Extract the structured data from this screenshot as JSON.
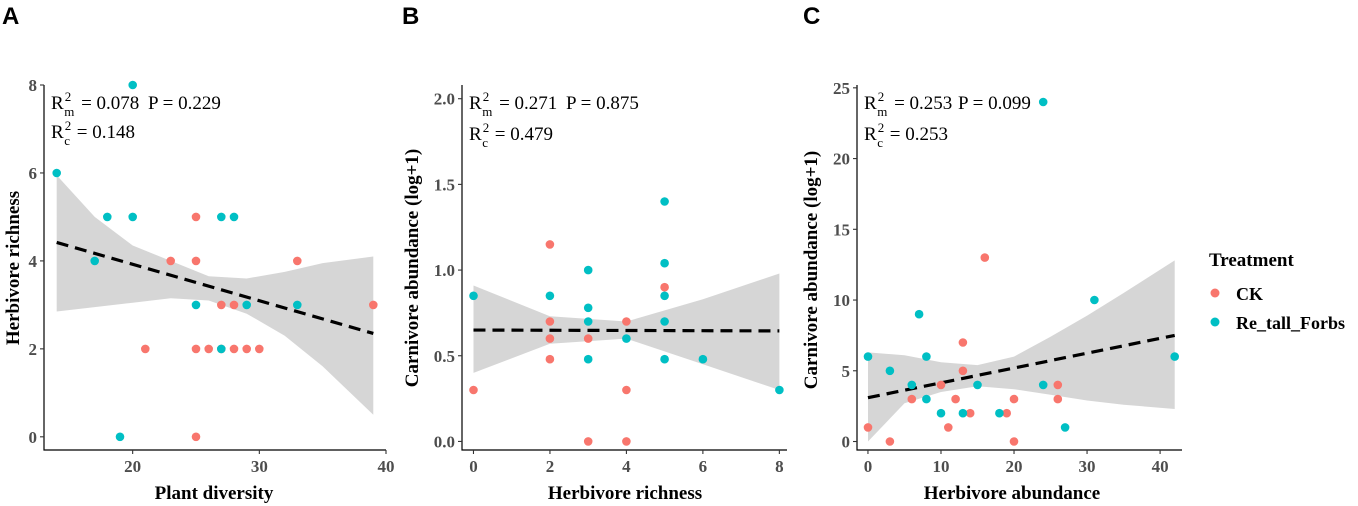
{
  "colors": {
    "CK": "#F8766D",
    "Re_tall_Forbs": "#00BFC4"
  },
  "legend": {
    "title": "Treatment",
    "items": [
      {
        "label": "CK",
        "color": "#F8766D"
      },
      {
        "label": "Re_tall_Forbs",
        "color": "#00BFC4"
      }
    ]
  },
  "chart_data": [
    {
      "type": "scatter",
      "panel": "A",
      "xlabel": "Plant diversity",
      "ylabel": "Herbivore richness",
      "xlim": [
        13,
        40
      ],
      "ylim": [
        -0.3,
        8
      ],
      "xticks": [
        20,
        30,
        40
      ],
      "yticks": [
        0,
        2,
        4,
        6,
        8
      ],
      "stats": {
        "r2m": "0.078",
        "r2c": "0.148",
        "p": "0.229"
      },
      "fit": {
        "x": [
          14,
          39
        ],
        "y": [
          4.42,
          2.35
        ]
      },
      "ci": {
        "x": [
          14,
          17,
          20,
          23,
          26,
          29,
          32,
          35,
          39
        ],
        "lower": [
          2.85,
          2.95,
          3.05,
          3.15,
          3.1,
          2.8,
          2.3,
          1.6,
          0.5
        ],
        "upper": [
          5.95,
          5.0,
          4.35,
          4.0,
          3.65,
          3.6,
          3.75,
          3.95,
          4.1
        ]
      },
      "series": [
        {
          "name": "CK",
          "points": [
            [
              21,
              2
            ],
            [
              23,
              4
            ],
            [
              25,
              5
            ],
            [
              25,
              4
            ],
            [
              25,
              2
            ],
            [
              25,
              0
            ],
            [
              26,
              2
            ],
            [
              27,
              3
            ],
            [
              27,
              2
            ],
            [
              28,
              3
            ],
            [
              28,
              2
            ],
            [
              29,
              2
            ],
            [
              30,
              2
            ],
            [
              33,
              4
            ],
            [
              39,
              3
            ]
          ]
        },
        {
          "name": "Re_tall_Forbs",
          "points": [
            [
              14,
              6
            ],
            [
              17,
              4
            ],
            [
              18,
              5
            ],
            [
              19,
              0
            ],
            [
              20,
              8
            ],
            [
              20,
              5
            ],
            [
              25,
              3
            ],
            [
              27,
              5
            ],
            [
              27,
              2
            ],
            [
              28,
              5
            ],
            [
              29,
              3
            ],
            [
              33,
              3
            ]
          ]
        }
      ]
    },
    {
      "type": "scatter",
      "panel": "B",
      "xlabel": "Herbivore richness",
      "ylabel": "Carnivore abundance (log+1)",
      "xlim": [
        -0.3,
        8.2
      ],
      "ylim": [
        -0.05,
        2.08
      ],
      "xticks": [
        0,
        2,
        4,
        6,
        8
      ],
      "yticks": [
        0.0,
        0.5,
        1.0,
        1.5,
        2.0
      ],
      "ytick_labels": [
        "0.0",
        "0.5",
        "1.0",
        "1.5",
        "2.0"
      ],
      "stats": {
        "r2m": "0.271",
        "r2c": "0.479",
        "p": "0.875"
      },
      "fit": {
        "x": [
          0,
          8
        ],
        "y": [
          0.65,
          0.645
        ]
      },
      "ci": {
        "x": [
          0,
          2,
          4,
          6,
          8
        ],
        "lower": [
          0.4,
          0.57,
          0.6,
          0.45,
          0.3
        ],
        "upper": [
          0.91,
          0.73,
          0.7,
          0.83,
          0.98
        ]
      },
      "series": [
        {
          "name": "CK",
          "points": [
            [
              0,
              0.3
            ],
            [
              2,
              1.15
            ],
            [
              2,
              0.7
            ],
            [
              2,
              0.6
            ],
            [
              2,
              0.48
            ],
            [
              3,
              0.6
            ],
            [
              3,
              0.0
            ],
            [
              4,
              0.7
            ],
            [
              4,
              0.3
            ],
            [
              4,
              0.0
            ],
            [
              5,
              0.9
            ]
          ]
        },
        {
          "name": "Re_tall_Forbs",
          "points": [
            [
              0,
              0.85
            ],
            [
              2,
              0.85
            ],
            [
              3,
              1.0
            ],
            [
              3,
              0.78
            ],
            [
              3,
              0.7
            ],
            [
              3,
              0.48
            ],
            [
              4,
              0.6
            ],
            [
              5,
              1.4
            ],
            [
              5,
              1.04
            ],
            [
              5,
              0.85
            ],
            [
              5,
              0.7
            ],
            [
              5,
              0.48
            ],
            [
              6,
              0.48
            ],
            [
              8,
              0.3
            ]
          ]
        }
      ]
    },
    {
      "type": "scatter",
      "panel": "C",
      "xlabel": "Herbivore abundance",
      "ylabel": "Carnivore abundance (log+1)",
      "xlim": [
        -1.5,
        43
      ],
      "ylim": [
        -0.6,
        25.2
      ],
      "xticks": [
        0,
        10,
        20,
        30,
        40
      ],
      "yticks": [
        0,
        5,
        10,
        15,
        20,
        25
      ],
      "stats": {
        "r2m": "0.253",
        "r2c": "0.253",
        "p": "0.099"
      },
      "fit": {
        "x": [
          0,
          42
        ],
        "y": [
          3.1,
          7.5
        ]
      },
      "ci": {
        "x": [
          0,
          5,
          10,
          15,
          20,
          25,
          30,
          35,
          42
        ],
        "lower": [
          0,
          2.7,
          3.5,
          3.9,
          3.7,
          3.3,
          2.9,
          2.6,
          2.3
        ],
        "upper": [
          6.3,
          6.1,
          5.6,
          5.4,
          6.0,
          7.4,
          8.9,
          10.5,
          12.8
        ]
      },
      "series": [
        {
          "name": "CK",
          "points": [
            [
              0,
              1
            ],
            [
              3,
              0
            ],
            [
              6,
              3
            ],
            [
              10,
              4
            ],
            [
              11,
              1
            ],
            [
              12,
              3
            ],
            [
              13,
              7
            ],
            [
              13,
              5
            ],
            [
              14,
              2
            ],
            [
              16,
              13
            ],
            [
              19,
              2
            ],
            [
              20,
              3
            ],
            [
              20,
              0
            ],
            [
              26,
              4
            ],
            [
              26,
              3
            ]
          ]
        },
        {
          "name": "Re_tall_Forbs",
          "points": [
            [
              0,
              6
            ],
            [
              3,
              5
            ],
            [
              6,
              4
            ],
            [
              7,
              9
            ],
            [
              8,
              6
            ],
            [
              8,
              3
            ],
            [
              10,
              2
            ],
            [
              13,
              2
            ],
            [
              15,
              4
            ],
            [
              18,
              2
            ],
            [
              24,
              24
            ],
            [
              24,
              4
            ],
            [
              27,
              1
            ],
            [
              31,
              10
            ],
            [
              42,
              6
            ]
          ]
        }
      ]
    }
  ]
}
